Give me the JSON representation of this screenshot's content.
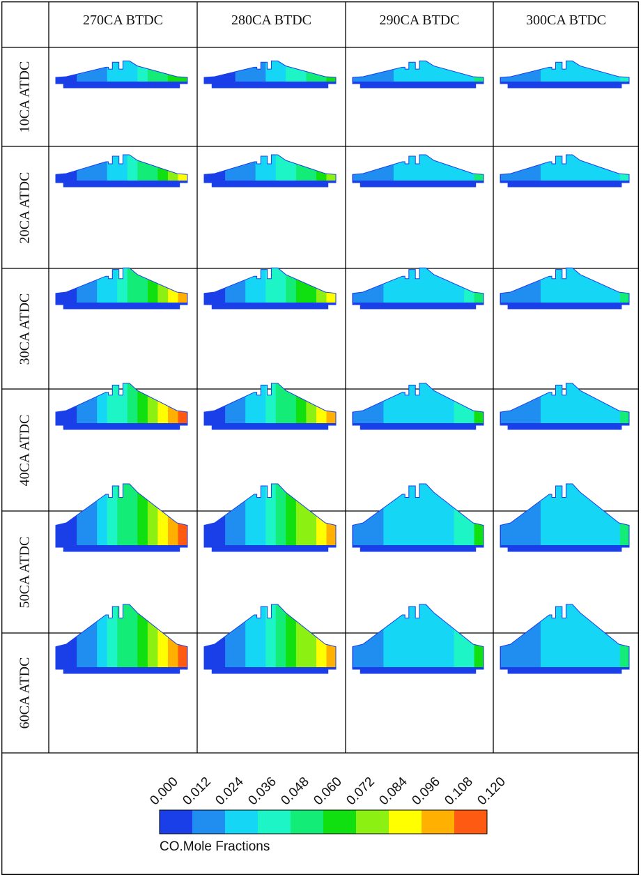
{
  "columns": [
    "270CA BTDC",
    "280CA BTDC",
    "290CA BTDC",
    "300CA BTDC"
  ],
  "rows": [
    "10CA ATDC",
    "20CA ATDC",
    "30CA ATDC",
    "40CA ATDC",
    "50CA ATDC",
    "60CA ATDC"
  ],
  "colorbar": {
    "title": "CO.Mole Fractions",
    "ticks": [
      "0.000",
      "0.012",
      "0.024",
      "0.036",
      "0.048",
      "0.060",
      "0.072",
      "0.084",
      "0.096",
      "0.108",
      "0.120"
    ],
    "colors": [
      "#1a3fe8",
      "#1f8ef0",
      "#16d6f5",
      "#1ef5c6",
      "#14ec78",
      "#10e010",
      "#8cf012",
      "#ffff00",
      "#ffb000",
      "#ff5a12"
    ]
  }
}
